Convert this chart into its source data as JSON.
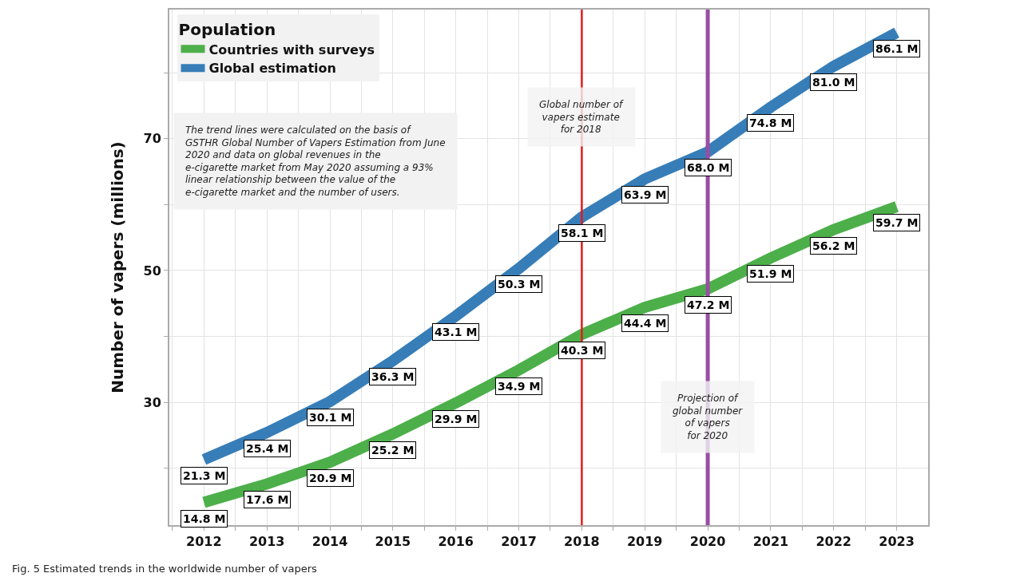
{
  "chart_data": {
    "type": "line",
    "ylabel": "Number of vapers (millions)",
    "legend_title": "Population",
    "x": [
      2012,
      2013,
      2014,
      2015,
      2016,
      2017,
      2018,
      2019,
      2020,
      2021,
      2022,
      2023
    ],
    "series": [
      {
        "name": "Countries with surveys",
        "color": "#4daf4a",
        "values": [
          14.8,
          17.6,
          20.9,
          25.2,
          29.9,
          34.9,
          40.3,
          44.4,
          47.2,
          51.9,
          56.2,
          59.7
        ],
        "value_labels": [
          "14.8 M",
          "17.6 M",
          "20.9 M",
          "25.2 M",
          "29.9 M",
          "34.9 M",
          "40.3 M",
          "44.4 M",
          "47.2 M",
          "51.9 M",
          "56.2 M",
          "59.7 M"
        ]
      },
      {
        "name": "Global estimation",
        "color": "#377eb8",
        "values": [
          21.3,
          25.4,
          30.1,
          36.3,
          43.1,
          50.3,
          58.1,
          63.9,
          68.0,
          74.8,
          81.0,
          86.1
        ],
        "value_labels": [
          "21.3 M",
          "25.4 M",
          "30.1 M",
          "36.3 M",
          "43.1 M",
          "50.3 M",
          "58.1 M",
          "63.9 M",
          "68.0 M",
          "74.8 M",
          "81.0 M",
          "86.1 M"
        ]
      }
    ],
    "xlim": [
      2011.45,
      2023.5
    ],
    "xticks": [
      {
        "value": 2011.5,
        "label": null
      },
      2012,
      {
        "value": 2012.5,
        "label": null
      },
      2013,
      {
        "value": 2013.5,
        "label": null
      },
      2014,
      {
        "value": 2014.5,
        "label": null
      },
      2015,
      {
        "value": 2015.5,
        "label": null
      },
      2016,
      {
        "value": 2016.5,
        "label": null
      },
      2017,
      {
        "value": 2017.5,
        "label": null
      },
      2018,
      {
        "value": 2018.5,
        "label": null
      },
      2019,
      {
        "value": 2019.5,
        "label": null
      },
      2020,
      {
        "value": 2020.5,
        "label": null
      },
      2021,
      {
        "value": 2021.5,
        "label": null
      },
      2022,
      {
        "value": 2022.5,
        "label": null
      },
      2023
    ],
    "ylim": [
      11.35,
      89.6
    ],
    "yticks": [
      {
        "value": 20,
        "label": null
      },
      30,
      {
        "value": 40,
        "label": null
      },
      50,
      {
        "value": 60,
        "label": null
      },
      70,
      {
        "value": 80,
        "label": null
      }
    ],
    "grid": true,
    "legend": "top left",
    "marker": "none",
    "line_style": "solid",
    "ref_lines": [
      {
        "axis": "x",
        "value": 2018,
        "label": "Global number of\nvapers estimate\nfor 2018",
        "color": "#e41a1c"
      },
      {
        "axis": "x",
        "value": 2020,
        "label": "Projection of\nglobal number\nof vapers\nfor 2020",
        "color": "#984ea3"
      }
    ],
    "annotations": [
      "The trend lines were calculated on the basis of GSTHR Global Number of Vapers Estimation from June 2020 and data on global revenues in the e-cigarette market from May 2020 assuming a 93% linear relationship between the value of the e-cigarette market and the number of users.",
      "Fig. 5 Estimated trends in the worldwide number of vapers"
    ]
  }
}
